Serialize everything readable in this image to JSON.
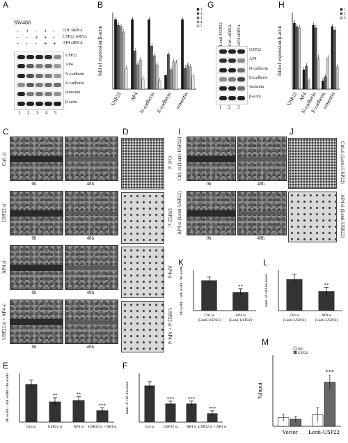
{
  "panels": {
    "A": {
      "label": "A",
      "cell_line": "SW480",
      "conditions": [
        "Ctrl. siRNA",
        "USP22 siRNA",
        "AP4 siRNA"
      ],
      "signs": [
        [
          "-",
          "+",
          "-",
          "+",
          "-"
        ],
        [
          "-",
          "-",
          "+",
          "+",
          "-"
        ],
        [
          "-",
          "-",
          "-",
          "+",
          "+"
        ]
      ],
      "rows": [
        "USP22",
        "AP4",
        "N-cadherin",
        "E-cadherin",
        "vimentin",
        "β-actin"
      ],
      "lanes": [
        "1",
        "2",
        "3",
        "4",
        "5"
      ]
    },
    "B": {
      "label": "B",
      "ylabel": "fold of expression/β-actin",
      "legend": [
        "1",
        "2",
        "3",
        "4",
        "5"
      ]
    },
    "G": {
      "label": "G",
      "conditions": [
        "Lenti-USP22",
        "Ctrl. siRNA",
        "AP4 siRNA"
      ],
      "rows": [
        "USP22",
        "AP4",
        "N-cadherin",
        "E-cadherin",
        "vimentin",
        "β-actin"
      ],
      "lanes": [
        "1",
        "2",
        "3"
      ]
    },
    "H": {
      "label": "H",
      "ylabel": "fold of expression/β-actin",
      "legend": [
        "1",
        "2",
        "3"
      ]
    },
    "C": {
      "label": "C",
      "rows": [
        "Ctrl. si",
        "USP22 si",
        "AP4 si",
        "USP22 si + AP4 si"
      ],
      "times": [
        "0h",
        "48h"
      ]
    },
    "D": {
      "label": "D",
      "rows": [
        "Ctrl. si",
        "USP22 si",
        "AP4 si",
        "USP22 si + AP4 si"
      ]
    },
    "I": {
      "label": "I",
      "rows": [
        "Ctrl. si (Lenti-USP22)",
        "AP4 si (Lenti-USP22)"
      ],
      "times": [
        "0h",
        "48h"
      ]
    },
    "J": {
      "label": "J",
      "rows": [
        "Ctrl.si (Lenti-USP22)",
        "AP4 si (Lenti-USP22)"
      ]
    },
    "K": {
      "label": "K",
      "ylabel": "0h width - 48h width / 0h width",
      "categories": [
        "Ctrl si (Lenti-USP22)",
        "AP4 si (Lenti-USP22)"
      ],
      "sig": [
        "",
        "**"
      ]
    },
    "L": {
      "label": "L",
      "ylabel": "num. of cell invasion",
      "categories": [
        "Ctrl si (Lenti-USP22)",
        "AP4 si (Lenti-USP22)"
      ],
      "sig": [
        "",
        "**"
      ]
    },
    "E": {
      "label": "E",
      "ylabel": "0h width - 48h width / 0h width",
      "categories": [
        "Ctrl si",
        "USP22 si",
        "AP4 si",
        "USP22 si + AP4 si"
      ],
      "sig": [
        "",
        "**",
        "**",
        "***"
      ]
    },
    "F": {
      "label": "F",
      "ylabel": "num. of cell invasion",
      "categories": [
        "Ctrl si",
        "USP22 si",
        "AP4 si",
        "USP22 si + AP4 si"
      ],
      "sig": [
        "",
        "***",
        "***",
        "***"
      ]
    },
    "M": {
      "label": "M",
      "ylabel": "%Input",
      "legend": [
        "IgG",
        "USP22"
      ],
      "groups": [
        "Vector",
        "Lenti-USP22"
      ],
      "sig": "***"
    }
  },
  "chart_data": [
    {
      "id": "B",
      "type": "bar",
      "categories": [
        "USP22",
        "AP4",
        "N-cadherin",
        "E-cadherin",
        "vimentin"
      ],
      "series": [
        {
          "name": "1",
          "values": [
            1.0,
            1.0,
            1.0,
            0.2,
            1.0
          ]
        },
        {
          "name": "2",
          "values": [
            0.92,
            0.55,
            0.62,
            0.5,
            0.3
          ]
        },
        {
          "name": "3",
          "values": [
            0.9,
            0.35,
            0.48,
            0.28,
            0.35
          ]
        },
        {
          "name": "4",
          "values": [
            0.82,
            0.42,
            0.35,
            0.4,
            0.32
          ]
        },
        {
          "name": "5",
          "values": [
            0.3,
            0.15,
            0.12,
            0.38,
            0.18
          ]
        }
      ],
      "ylim": [
        0,
        1.1
      ],
      "colors": [
        "#1a1a1a",
        "#555555",
        "#888888",
        "#b5b5b5",
        "#e6e6e6"
      ]
    },
    {
      "id": "H",
      "type": "bar",
      "categories": [
        "USP22",
        "AP4",
        "N-cadherin",
        "E-cadherin",
        "vimentin"
      ],
      "series": [
        {
          "name": "1",
          "values": [
            0.95,
            0.28,
            0.92,
            0.12,
            0.9
          ]
        },
        {
          "name": "2",
          "values": [
            0.9,
            0.33,
            0.88,
            0.18,
            0.85
          ]
        },
        {
          "name": "3",
          "values": [
            0.88,
            0.12,
            0.45,
            0.45,
            0.32
          ]
        }
      ],
      "ylim": [
        0,
        1.1
      ],
      "colors": [
        "#1a1a1a",
        "#555555",
        "#c8c8c8"
      ]
    },
    {
      "id": "K",
      "type": "bar",
      "categories": [
        "Ctrl si (Lenti-USP22)",
        "AP4 si (Lenti-USP22)"
      ],
      "values": [
        0.75,
        0.46
      ],
      "errors": [
        0.08,
        0.08
      ],
      "ylim": [
        0,
        1
      ]
    },
    {
      "id": "L",
      "type": "bar",
      "categories": [
        "Ctrl si (Lenti-USP22)",
        "AP4 si (Lenti-USP22)"
      ],
      "values": [
        0.78,
        0.48
      ],
      "errors": [
        0.12,
        0.1
      ],
      "ylim": [
        0,
        1
      ]
    },
    {
      "id": "E",
      "type": "bar",
      "categories": [
        "Ctrl si",
        "USP22 si",
        "AP4 si",
        "USP22 si + AP4 si"
      ],
      "values": [
        0.78,
        0.42,
        0.45,
        0.24
      ],
      "errors": [
        0.08,
        0.08,
        0.07,
        0.05
      ],
      "ylim": [
        0,
        1
      ]
    },
    {
      "id": "F",
      "type": "bar",
      "categories": [
        "Ctrl si",
        "USP22 si",
        "AP4 si",
        "USP22 si + AP4 si"
      ],
      "values": [
        0.75,
        0.38,
        0.38,
        0.18
      ],
      "errors": [
        0.08,
        0.05,
        0.05,
        0.05
      ],
      "ylim": [
        0,
        1
      ]
    },
    {
      "id": "M",
      "type": "bar",
      "categories": [
        "Vector",
        "Lenti-USP22"
      ],
      "series": [
        {
          "name": "IgG",
          "values": [
            0.12,
            0.16
          ]
        },
        {
          "name": "USP22",
          "values": [
            0.1,
            0.62
          ]
        }
      ],
      "errors": [
        [
          0.05,
          0.1
        ],
        [
          0.04,
          0.1
        ]
      ],
      "ylim": [
        0,
        1
      ],
      "colors": [
        "#ffffff",
        "#666666"
      ]
    }
  ]
}
